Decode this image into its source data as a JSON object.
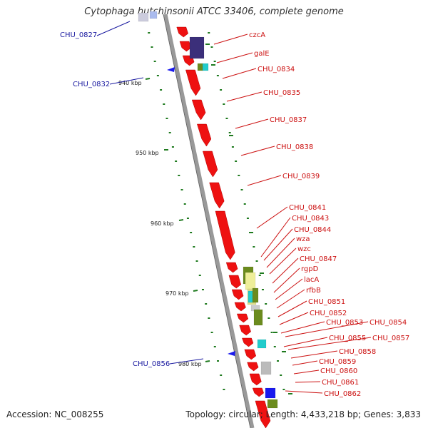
{
  "title": "Cytophaga hutchinsonii ATCC 33406, complete genome",
  "accession": "Accession: NC_008255",
  "summary": "Topology: circular; Length: 4,433,218 bp; Genes: 3,833",
  "colors": {
    "backbone": "#7a7a7a",
    "cds": "#ee1111",
    "blue_label": "#1a1aa0",
    "red_label": "#cc1111",
    "gc_tick": "#1e7a1e"
  },
  "scale_labels": [
    "940 kbp",
    "950 kbp",
    "960 kbp",
    "970 kbp",
    "980 kbp"
  ],
  "left_labels": [
    "CHU_0827",
    "CHU_0832",
    "CHU_0856"
  ],
  "right_labels": [
    "czcA",
    "galE",
    "CHU_0834",
    "CHU_0835",
    "CHU_0837",
    "CHU_0838",
    "CHU_0839",
    "CHU_0841",
    "CHU_0843",
    "CHU_0844",
    "wza",
    "wzc",
    "CHU_0847",
    "rgpD",
    "lacA",
    "rfbB",
    "CHU_0851",
    "CHU_0852",
    "CHU_0853",
    "CHU_0854",
    "CHU_0855",
    "CHU_0857",
    "CHU_0858",
    "CHU_0859",
    "CHU_0860",
    "CHU_0861",
    "CHU_0862"
  ]
}
